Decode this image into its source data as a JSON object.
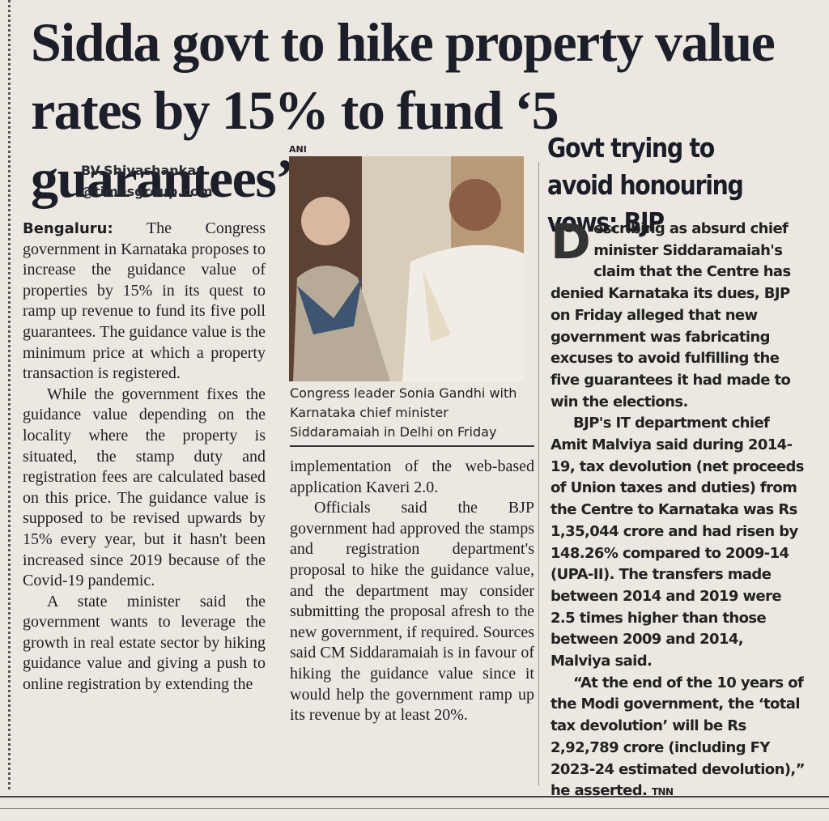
{
  "headline": "Sidda govt to hike property value rates by 15% to fund ‘5 guarantees’",
  "byline": {
    "author": "BV.Shivashankar",
    "email": "@timesgroup.com"
  },
  "photo": {
    "credit": "ANI",
    "caption": "Congress leader Sonia Gandhi with Karnataka chief minister Siddaramaiah in Delhi on Friday"
  },
  "article": {
    "dateline": "Bengaluru:",
    "column_1": [
      "The Congress government in Karnataka proposes to increase the guidance value of properties by 15% in its quest to ramp up revenue to fund its five poll guarantees. The guidance value is the minimum price at which a property transaction is registered.",
      "While the government fixes the guidance value depending on the locality where the property is situated, the stamp duty and registration fees are calculated based on this price. The guidance value is supposed to be revised upwards by 15% every year, but it hasn't been increased since 2019 because of the Covid-19 pandemic.",
      "A state minister said the government wants to leverage the growth in real estate sector by hiking guidance value and giving a push to online registration by extending the"
    ],
    "column_2": [
      "implementation of the web-based application Kaveri 2.0.",
      "Officials said the BJP government had approved the stamps and registration department's proposal to hike the guidance value, and the department may consider submitting the proposal afresh to the new government, if required. Sources said CM Siddaramaiah is in favour of hiking the guidance value since it would help the government ramp up its revenue by at least 20%."
    ]
  },
  "sidebar": {
    "headline": "Govt trying to avoid honouring vows: BJP",
    "paragraphs": [
      "Describing as absurd chief minister Siddaramaiah's claim that the Centre has denied Karnataka its dues, BJP on Friday alleged that new government was fabricating excuses to avoid fulfilling the five guarantees it had made to win the elections.",
      "BJP's IT department chief Amit Malviya said during 2014-19, tax devolution (net proceeds of Union taxes and duties) from the Centre to Karnataka was Rs 1,35,044 crore and had risen by 148.26% compared to 2009-14 (UPA-II). The transfers made between 2014 and 2019 were 2.5 times higher than those between 2009 and 2014, Malviya said.",
      "“At the end of the 10 years of the Modi government, the ‘total tax devolution’ will be Rs 2,92,789 crore (including FY 2023-24 estimated devolution),” he asserted."
    ],
    "agency": "TNN"
  }
}
